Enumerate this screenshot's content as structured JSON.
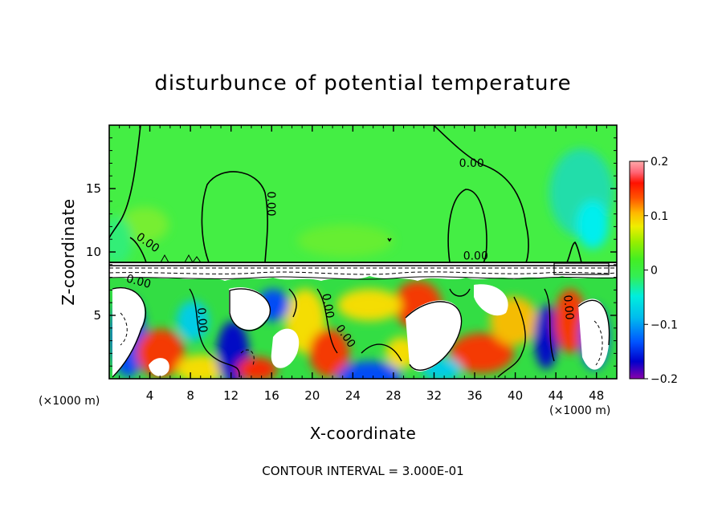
{
  "chart_data": {
    "type": "heatmap",
    "title": "disturbunce of potential temperature",
    "xlabel": "X-coordinate",
    "ylabel": "Z-coordinate",
    "x_unit": "(×1000 m)",
    "z_unit": "(×1000 m)",
    "x_ticks": [
      4,
      8,
      12,
      16,
      20,
      24,
      28,
      32,
      36,
      40,
      44,
      48
    ],
    "y_ticks": [
      5,
      10,
      15
    ],
    "xlim": [
      0,
      50
    ],
    "ylim": [
      0,
      20
    ],
    "colorbar": {
      "range": [
        -0.2,
        0.2
      ],
      "tick_labels": [
        "0.2",
        "0.1",
        "0",
        "−0.1",
        "−0.2"
      ],
      "tick_values": [
        0.2,
        0.1,
        0,
        -0.1,
        -0.2
      ]
    },
    "contour_labels": [
      {
        "text": "0.00",
        "x": 35.7,
        "z": 16.7,
        "angle": 0
      },
      {
        "text": "0.00",
        "x": 15.6,
        "z": 13.8,
        "angle": 90
      },
      {
        "text": "0.00",
        "x": 3.6,
        "z": 10.5,
        "angle": 35
      },
      {
        "text": "0.00",
        "x": 36.1,
        "z": 9.4,
        "angle": 0
      },
      {
        "text": "0.00",
        "x": 2.8,
        "z": 7.4,
        "angle": 15
      },
      {
        "text": "0.00",
        "x": 21.2,
        "z": 5.7,
        "angle": 80
      },
      {
        "text": "0.00",
        "x": 23.0,
        "z": 3.2,
        "angle": 55
      },
      {
        "text": "0.00",
        "x": 44.9,
        "z": 5.6,
        "angle": 85
      },
      {
        "text": "0.00",
        "x": 8.8,
        "z": 4.6,
        "angle": 85
      }
    ],
    "footer": "CONTOUR INTERVAL = 3.000E-01"
  },
  "colors": {
    "background_field": "#44ee44",
    "colormap": [
      "#8800aa",
      "#0000cc",
      "#0055ff",
      "#00bbee",
      "#00eedd",
      "#33ee55",
      "#77ee22",
      "#ccee00",
      "#ffcc00",
      "#ff7700",
      "#ff2200",
      "#ee0033",
      "#ff9999"
    ]
  }
}
